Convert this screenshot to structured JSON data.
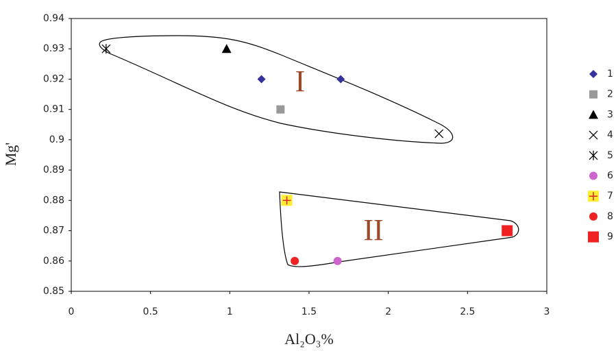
{
  "chart_data": {
    "type": "scatter",
    "x_label": "Al₂O₃%",
    "y_label": "Mg'",
    "xlim": [
      0,
      3
    ],
    "xticks": [
      0,
      0.5,
      1,
      1.5,
      2,
      2.5,
      3
    ],
    "ylim": [
      0.85,
      0.94
    ],
    "yticks": [
      0.85,
      0.86,
      0.87,
      0.88,
      0.89,
      0.9,
      0.91,
      0.92,
      0.93,
      0.94
    ],
    "annotations": [
      "I",
      "II"
    ],
    "series": [
      {
        "name": "1",
        "marker": "diamond",
        "color": "#333399",
        "x": [
          1.2,
          1.7
        ],
        "y": [
          0.92,
          0.92
        ]
      },
      {
        "name": "2",
        "marker": "square",
        "color": "#999999",
        "x": [
          1.32
        ],
        "y": [
          0.91
        ]
      },
      {
        "name": "3",
        "marker": "triangle",
        "color": "#000000",
        "x": [
          0.98
        ],
        "y": [
          0.93
        ]
      },
      {
        "name": "4",
        "marker": "cross",
        "color": "#000000",
        "x": [
          2.32
        ],
        "y": [
          0.902
        ]
      },
      {
        "name": "5",
        "marker": "asterisk",
        "color": "#000000",
        "x": [
          0.22
        ],
        "y": [
          0.93
        ]
      },
      {
        "name": "6",
        "marker": "circle",
        "color": "#cc66cc",
        "x": [
          1.68
        ],
        "y": [
          0.86
        ]
      },
      {
        "name": "7",
        "marker": "plus-square",
        "color": "#ffee33",
        "x": [
          1.36
        ],
        "y": [
          0.88
        ]
      },
      {
        "name": "8",
        "marker": "circle",
        "color": "#ee2222",
        "x": [
          1.41
        ],
        "y": [
          0.86
        ]
      },
      {
        "name": "9",
        "marker": "square",
        "color": "#ee2222",
        "x": [
          2.75
        ],
        "y": [
          0.87
        ]
      }
    ]
  }
}
